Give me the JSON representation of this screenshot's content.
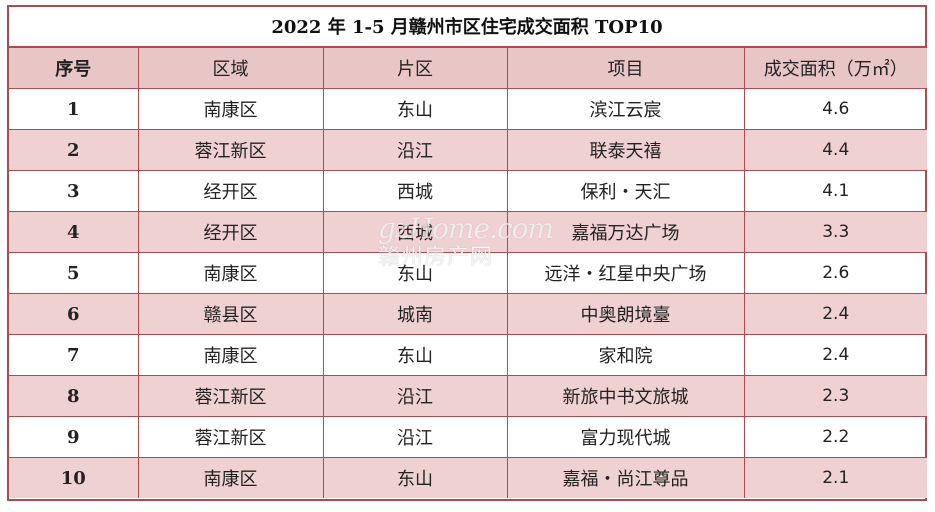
{
  "title": "2022 年 1-5 月赣州市区住宅成交面积 TOP10",
  "headers": [
    "序号",
    "区域",
    "片区",
    "项目",
    "成交面积（万㎡）"
  ],
  "rows": [
    [
      "1",
      "南康区",
      "东山",
      "滨江云宸",
      "4.6"
    ],
    [
      "2",
      "蓉江新区",
      "沿江",
      "联泰天禧",
      "4.4"
    ],
    [
      "3",
      "经开区",
      "西城",
      "保利・天汇",
      "4.1"
    ],
    [
      "4",
      "经开区",
      "西城",
      "嘉福万达广场",
      "3.3"
    ],
    [
      "5",
      "南康区",
      "东山",
      "远洋・红星中央广场",
      "2.6"
    ],
    [
      "6",
      "赣县区",
      "城南",
      "中奥朗境臺",
      "2.4"
    ],
    [
      "7",
      "南康区",
      "东山",
      "家和院",
      "2.4"
    ],
    [
      "8",
      "蓉江新区",
      "沿江",
      "新旅中书文旅城",
      "2.3"
    ],
    [
      "9",
      "蓉江新区",
      "沿江",
      "富力现代城",
      "2.2"
    ],
    [
      "10",
      "南康区",
      "东山",
      "嘉福・尚江尊品",
      "2.1"
    ]
  ],
  "watermark": {
    "line1": "gzHome.com",
    "line2": "赣州房产网"
  },
  "colors": {
    "border": "#b04a52",
    "header_bg": "#e9c6c6",
    "alt_row_bg": "#f0d1d2"
  }
}
